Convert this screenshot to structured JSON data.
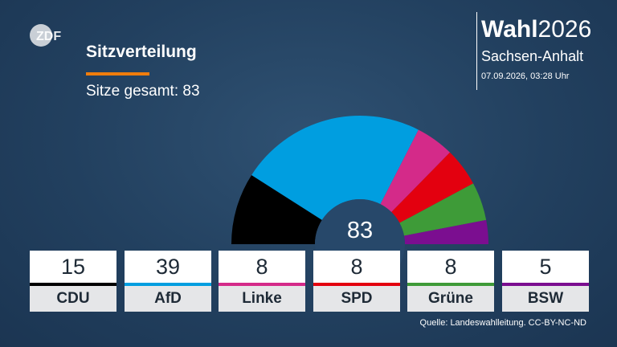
{
  "header": {
    "title": "Sitzverteilung",
    "subtitle": "Sitze gesamt: 83",
    "brand_bold": "Wahl",
    "brand_year": "2026",
    "region": "Sachsen-Anhalt",
    "timestamp": "07.09.2026, 03:28 Uhr",
    "logo_text": "ZDF",
    "accent_color": "#f07d0c"
  },
  "chart_data": {
    "type": "pie",
    "subtype": "parliament-semicircle",
    "total": 83,
    "center_label": "83",
    "series": [
      {
        "name": "CDU",
        "value": 15,
        "color": "#000000"
      },
      {
        "name": "AfD",
        "value": 39,
        "color": "#009ee0"
      },
      {
        "name": "Linke",
        "value": 8,
        "color": "#d42a89"
      },
      {
        "name": "SPD",
        "value": 8,
        "color": "#e3000f"
      },
      {
        "name": "Grüne",
        "value": 8,
        "color": "#3e9b38"
      },
      {
        "name": "BSW",
        "value": 5,
        "color": "#7b0e90"
      }
    ]
  },
  "footer": {
    "source": "Quelle: Landeswahlleitung. CC-BY-NC-ND"
  }
}
